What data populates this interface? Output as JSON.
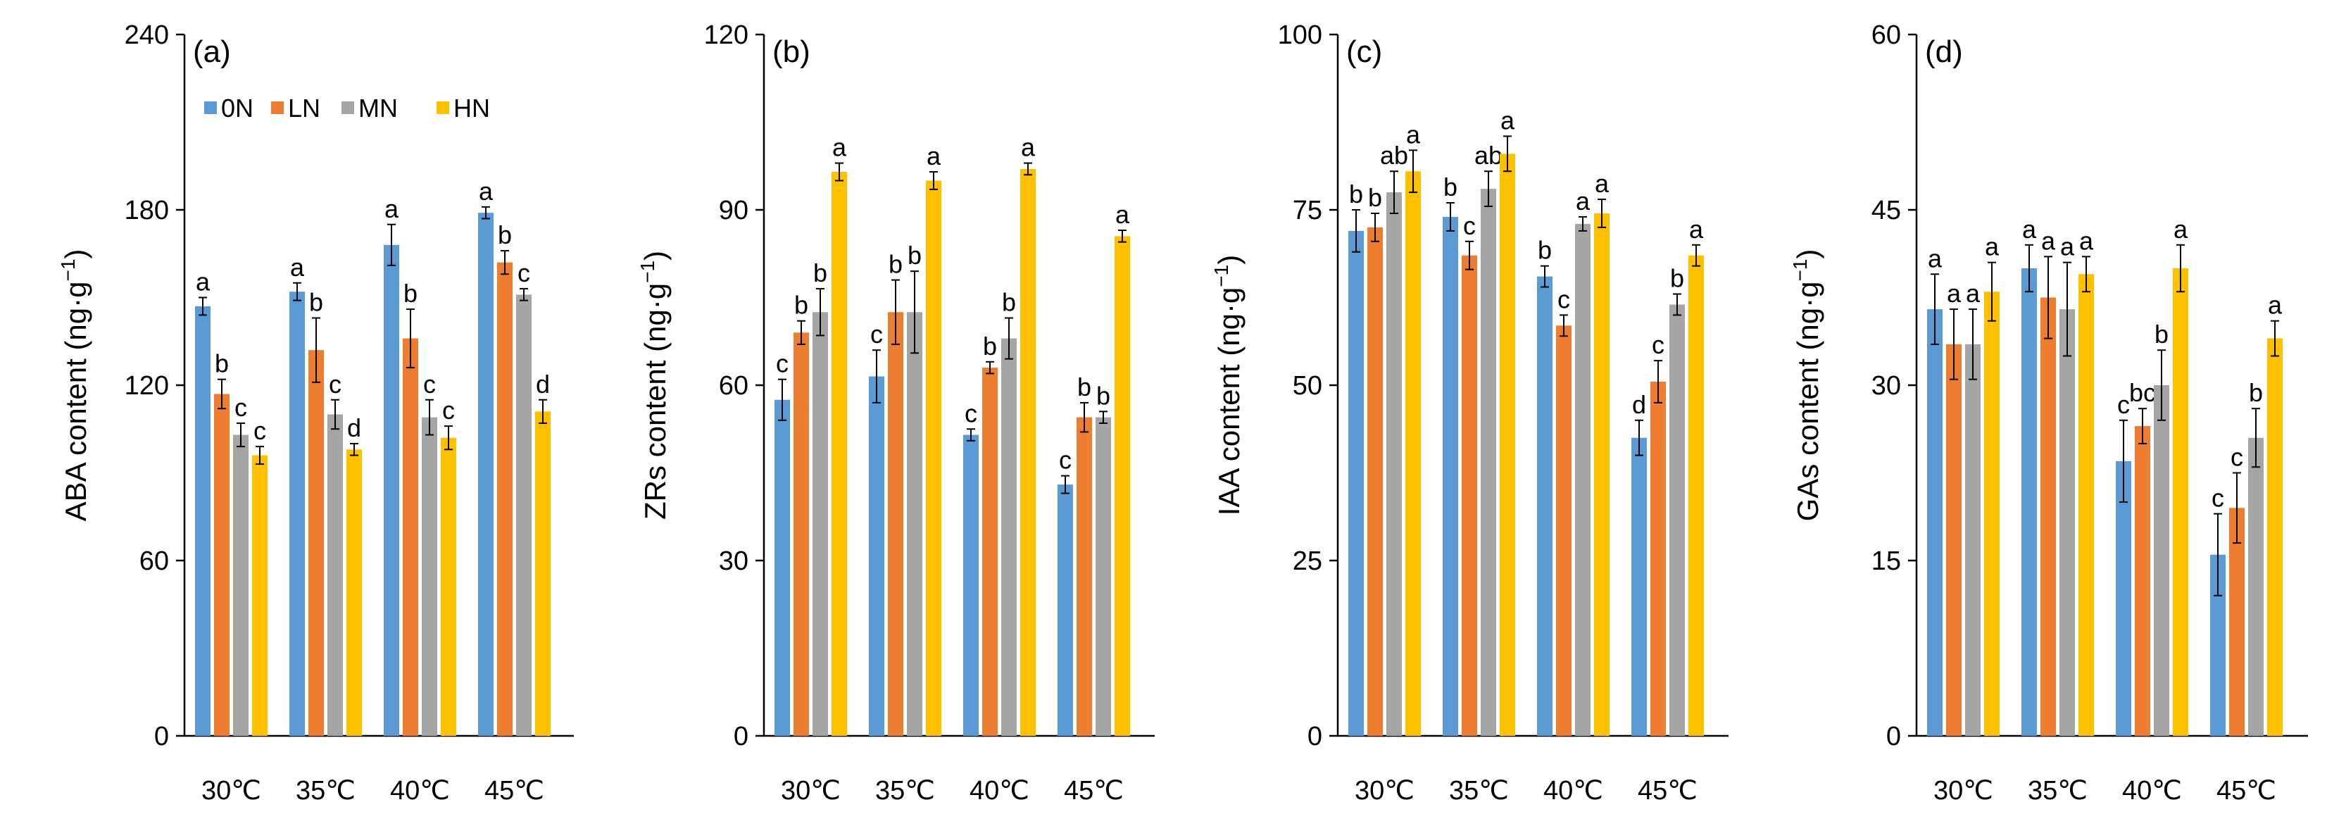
{
  "chart_data": [
    {
      "type": "bar",
      "panel": "(a)",
      "ylabel_main": "ABA content (ng·g",
      "ylabel_sup": "−1",
      "ylabel_end": ")",
      "ylim": [
        0,
        240
      ],
      "yticks": [
        "0",
        "60",
        "120",
        "180",
        "240"
      ],
      "categories": [
        "30℃",
        "35℃",
        "40℃",
        "45℃"
      ],
      "series": [
        {
          "name": "0N",
          "values": [
            147,
            152,
            168,
            179
          ],
          "errors": [
            3,
            3,
            7,
            2
          ],
          "letters": [
            "a",
            "a",
            "a",
            "a"
          ]
        },
        {
          "name": "LN",
          "values": [
            117,
            132,
            136,
            162
          ],
          "errors": [
            5,
            11,
            10,
            4
          ],
          "letters": [
            "b",
            "b",
            "b",
            "b"
          ]
        },
        {
          "name": "MN",
          "values": [
            103,
            110,
            109,
            151
          ],
          "errors": [
            4,
            5,
            6,
            2
          ],
          "letters": [
            "c",
            "c",
            "c",
            "c"
          ]
        },
        {
          "name": "HN",
          "values": [
            96,
            98,
            102,
            111
          ],
          "errors": [
            3,
            2,
            4,
            4
          ],
          "letters": [
            "c",
            "d",
            "c",
            "d"
          ]
        }
      ]
    },
    {
      "type": "bar",
      "panel": "(b)",
      "ylabel_main": "ZRs content (ng·g",
      "ylabel_sup": "−1",
      "ylabel_end": ")",
      "ylim": [
        0,
        120
      ],
      "yticks": [
        "0",
        "30",
        "60",
        "90",
        "120"
      ],
      "categories": [
        "30℃",
        "35℃",
        "40℃",
        "45℃"
      ],
      "series": [
        {
          "name": "0N",
          "values": [
            57.5,
            61.5,
            51.5,
            43
          ],
          "errors": [
            3.5,
            4.5,
            1,
            1.5
          ],
          "letters": [
            "c",
            "c",
            "c",
            "c"
          ]
        },
        {
          "name": "LN",
          "values": [
            69,
            72.5,
            63,
            54.5
          ],
          "errors": [
            2,
            5.5,
            1,
            2.5
          ],
          "letters": [
            "b",
            "b",
            "b",
            "b"
          ]
        },
        {
          "name": "MN",
          "values": [
            72.5,
            72.5,
            68,
            54.5
          ],
          "errors": [
            4,
            7,
            3.5,
            1
          ],
          "letters": [
            "b",
            "b",
            "b",
            "b"
          ]
        },
        {
          "name": "HN",
          "values": [
            96.5,
            95,
            97,
            85.5
          ],
          "errors": [
            1.5,
            1.5,
            1,
            1
          ],
          "letters": [
            "a",
            "a",
            "a",
            "a"
          ]
        }
      ]
    },
    {
      "type": "bar",
      "panel": "(c)",
      "ylabel_main": "IAA content (ng·g",
      "ylabel_sup": "−1",
      "ylabel_end": ")",
      "ylim": [
        0,
        100
      ],
      "yticks": [
        "0",
        "25",
        "50",
        "75",
        "100"
      ],
      "categories": [
        "30℃",
        "35℃",
        "40℃",
        "45℃"
      ],
      "series": [
        {
          "name": "0N",
          "values": [
            72,
            74,
            65.5,
            42.5
          ],
          "errors": [
            3,
            2,
            1.5,
            2.5
          ],
          "letters": [
            "b",
            "b",
            "b",
            "d"
          ]
        },
        {
          "name": "LN",
          "values": [
            72.5,
            68.5,
            58.5,
            50.5
          ],
          "errors": [
            2,
            2,
            1.5,
            3
          ],
          "letters": [
            "b",
            "c",
            "c",
            "c"
          ]
        },
        {
          "name": "MN",
          "values": [
            77.5,
            78,
            73,
            61.5
          ],
          "errors": [
            3,
            2.5,
            1,
            1.5
          ],
          "letters": [
            "ab",
            "ab",
            "a",
            "b"
          ]
        },
        {
          "name": "HN",
          "values": [
            80.5,
            83,
            74.5,
            68.5
          ],
          "errors": [
            3,
            2.5,
            2,
            1.5
          ],
          "letters": [
            "a",
            "a",
            "a",
            "a"
          ]
        }
      ]
    },
    {
      "type": "bar",
      "panel": "(d)",
      "ylabel_main": "GAs content (ng·g",
      "ylabel_sup": "−1",
      "ylabel_end": ")",
      "ylim": [
        0,
        60
      ],
      "yticks": [
        "0",
        "15",
        "30",
        "45",
        "60"
      ],
      "categories": [
        "30℃",
        "35℃",
        "40℃",
        "45℃"
      ],
      "series": [
        {
          "name": "0N",
          "values": [
            36.5,
            40,
            23.5,
            15.5
          ],
          "errors": [
            3,
            2,
            3.5,
            3.5
          ],
          "letters": [
            "a",
            "a",
            "c",
            "c"
          ]
        },
        {
          "name": "LN",
          "values": [
            33.5,
            37.5,
            26.5,
            19.5
          ],
          "errors": [
            3,
            3.5,
            1.5,
            3
          ],
          "letters": [
            "a",
            "a",
            "bc",
            "c"
          ]
        },
        {
          "name": "MN",
          "values": [
            33.5,
            36.5,
            30,
            25.5
          ],
          "errors": [
            3,
            4,
            3,
            2.5
          ],
          "letters": [
            "a",
            "a",
            "b",
            "b"
          ]
        },
        {
          "name": "HN",
          "values": [
            38,
            39.5,
            40,
            34
          ],
          "errors": [
            2.5,
            1.5,
            2,
            1.5
          ],
          "letters": [
            "a",
            "a",
            "a",
            "a"
          ]
        }
      ]
    }
  ],
  "legend": {
    "placement": "top-left of panel (a)",
    "entries": [
      "0N",
      "LN",
      "MN",
      "HN"
    ]
  },
  "colors": {
    "0N": "#5b9bd5",
    "LN": "#ed7d31",
    "MN": "#a5a5a5",
    "HN": "#ffc000",
    "axis": "#000000",
    "error_bar": "#000000"
  }
}
